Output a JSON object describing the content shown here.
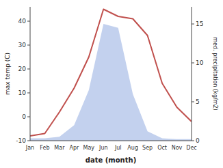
{
  "chart_data": {
    "type": "line",
    "xlabel": "date (month)",
    "ylabel": "max temp (C)",
    "y2label": "med. precipitation (kg/m2)",
    "categories": [
      "Jan",
      "Feb",
      "Mar",
      "Apr",
      "May",
      "Jun",
      "Jul",
      "Aug",
      "Sep",
      "Oct",
      "Nov",
      "Dec"
    ],
    "series": [
      {
        "type": "area",
        "axis": "y2",
        "color": "#afc2e8",
        "values": [
          0.3,
          0.3,
          0.5,
          2.0,
          6.5,
          15.0,
          14.5,
          6.0,
          1.2,
          0.3,
          0.2,
          0.2
        ]
      },
      {
        "type": "line",
        "color": "#c0504d",
        "values": [
          -8,
          -7,
          2,
          12,
          25,
          45,
          42,
          41,
          34,
          14,
          4,
          -2
        ]
      }
    ],
    "ylim": [
      -10,
      46
    ],
    "yticks": [
      -10,
      0,
      10,
      20,
      30,
      40
    ],
    "y2lim": [
      0,
      17.2
    ],
    "y2ticks": [
      0,
      5,
      10,
      15
    ],
    "grid": false
  }
}
